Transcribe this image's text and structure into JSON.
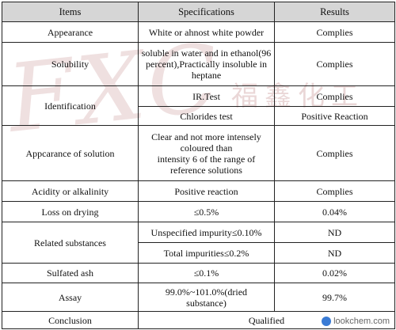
{
  "headers": {
    "items": "Items",
    "specifications": "Specifications",
    "results": "Results"
  },
  "rows": {
    "appearance": {
      "item": "Appearance",
      "spec": "White or ahnost white powder",
      "result": "Complies"
    },
    "solubility": {
      "item": "Solubility",
      "spec": "soluble in water and in ethanol(96 percent),Practically insoluble in heptane",
      "result": "Complies"
    },
    "identification": {
      "item": "Identification",
      "tests": [
        {
          "spec": "IR.Test",
          "result": "Complies"
        },
        {
          "spec": "Chlorides test",
          "result": "Positive Reaction"
        }
      ]
    },
    "appearance_solution": {
      "item": "Appcarance of solution",
      "spec_lines": [
        "Clear and not more intensely",
        "coloured than",
        "intensity 6 of the range of",
        "reference solutions"
      ],
      "result": "Complies"
    },
    "acidity": {
      "item": "Acidity or alkalinity",
      "spec": "Positive reaction",
      "result": "Complies"
    },
    "loss_on_drying": {
      "item": "Loss on drying",
      "spec": "≤0.5%",
      "result": "0.04%"
    },
    "related_substances": {
      "item": "Related substances",
      "tests": [
        {
          "spec": "Unspecified impurity≤0.10%",
          "result": "ND"
        },
        {
          "spec": "Total impurities≤0.2%",
          "result": "ND"
        }
      ]
    },
    "sulfated_ash": {
      "item": "Sulfated ash",
      "spec": "≤0.1%",
      "result": "0.02%"
    },
    "assay": {
      "item": "Assay",
      "spec_lines": [
        "99.0%~101.0%(dried",
        "substance)"
      ],
      "result": "99.7%"
    },
    "conclusion": {
      "item": "Conclusion",
      "result": "Qualified"
    }
  },
  "watermark": {
    "text": "FXC",
    "cn_text": "福鑫化工"
  },
  "credit": {
    "text": "lookchem.com",
    "icon": "lookchem-logo-icon"
  }
}
